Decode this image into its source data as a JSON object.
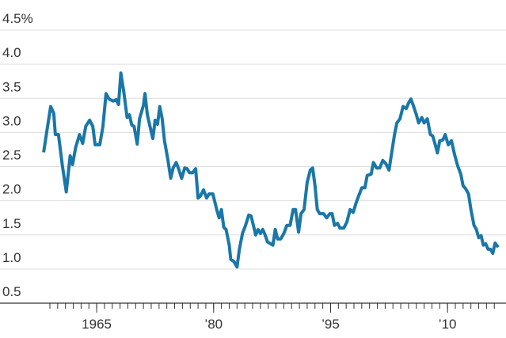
{
  "chart_data": {
    "type": "line",
    "x": [
      1958.2,
      1958.7,
      1959.1,
      1959.5,
      1959.7,
      1960.1,
      1960.6,
      1961.1,
      1961.6,
      1961.9,
      1962.3,
      1962.8,
      1963.2,
      1963.6,
      1964.1,
      1964.5,
      1964.8,
      1965.4,
      1965.8,
      1966.2,
      1966.6,
      1967.1,
      1967.5,
      1967.8,
      1968.1,
      1968.5,
      1968.9,
      1969.2,
      1969.5,
      1969.8,
      1970.2,
      1970.5,
      1971.0,
      1971.2,
      1971.5,
      1971.9,
      1972.2,
      1972.5,
      1972.8,
      1973.1,
      1973.4,
      1973.7,
      1974.1,
      1974.5,
      1974.8,
      1975.2,
      1975.5,
      1975.9,
      1976.3,
      1976.6,
      1976.9,
      1977.3,
      1977.7,
      1978.0,
      1978.3,
      1978.7,
      1979.1,
      1979.4,
      1979.9,
      1980.4,
      1980.7,
      1981.0,
      1981.3,
      1981.6,
      1982.0,
      1982.2,
      1982.6,
      1983.0,
      1983.3,
      1983.7,
      1984.1,
      1984.5,
      1984.8,
      1985.1,
      1985.4,
      1985.7,
      1986.0,
      1986.3,
      1986.6,
      1986.9,
      1987.3,
      1987.6,
      1987.9,
      1988.2,
      1988.6,
      1989.0,
      1989.4,
      1989.8,
      1990.2,
      1990.5,
      1990.9,
      1991.2,
      1991.6,
      1992.0,
      1992.4,
      1992.7,
      1993.0,
      1993.3,
      1993.6,
      1994.1,
      1994.5,
      1994.9,
      1995.2,
      1995.5,
      1995.9,
      1996.2,
      1996.7,
      1997.1,
      1997.5,
      1997.9,
      1998.3,
      1998.7,
      1999.0,
      1999.4,
      1999.7,
      2000.2,
      2000.5,
      2000.9,
      2001.3,
      2001.7,
      2002.1,
      2002.5,
      2002.8,
      2003.2,
      2003.5,
      2003.9,
      2004.3,
      2004.7,
      2005.0,
      2005.3,
      2005.6,
      2006.0,
      2006.3,
      2006.7,
      2007.0,
      2007.4,
      2007.8,
      2008.1,
      2008.4,
      2008.7,
      2009.0,
      2009.4,
      2009.7,
      2010.1,
      2010.5,
      2010.9,
      2011.3,
      2011.7,
      2012.0,
      2012.3,
      2012.7,
      2013.0,
      2013.4,
      2013.7,
      2014.0,
      2014.3,
      2014.6,
      2014.9,
      2015.2,
      2015.5,
      2015.8,
      2016.1,
      2016.5
    ],
    "series": [
      {
        "color": "#1a77a8",
        "values": [
          2.71,
          3.09,
          3.38,
          3.28,
          2.97,
          2.97,
          2.51,
          2.13,
          2.66,
          2.53,
          2.78,
          2.97,
          2.84,
          3.09,
          3.18,
          3.09,
          2.82,
          2.82,
          3.09,
          3.57,
          3.49,
          3.46,
          3.48,
          3.41,
          3.87,
          3.57,
          3.22,
          3.26,
          3.11,
          3.09,
          2.83,
          3.2,
          3.4,
          3.57,
          3.26,
          3.06,
          2.91,
          3.18,
          3.12,
          3.38,
          3.2,
          2.88,
          2.62,
          2.33,
          2.48,
          2.56,
          2.47,
          2.33,
          2.48,
          2.47,
          2.41,
          2.41,
          2.47,
          2.04,
          2.07,
          2.16,
          2.04,
          2.1,
          2.1,
          1.87,
          1.75,
          1.87,
          1.61,
          1.58,
          1.35,
          1.14,
          1.11,
          1.03,
          1.29,
          1.52,
          1.64,
          1.79,
          1.78,
          1.64,
          1.5,
          1.58,
          1.52,
          1.58,
          1.5,
          1.4,
          1.37,
          1.35,
          1.58,
          1.44,
          1.44,
          1.52,
          1.64,
          1.64,
          1.87,
          1.87,
          1.54,
          1.81,
          1.87,
          2.27,
          2.45,
          2.48,
          2.22,
          1.87,
          1.81,
          1.81,
          1.75,
          1.81,
          1.81,
          1.64,
          1.67,
          1.6,
          1.6,
          1.69,
          1.87,
          1.83,
          1.98,
          2.1,
          2.19,
          2.19,
          2.37,
          2.39,
          2.56,
          2.48,
          2.48,
          2.59,
          2.54,
          2.45,
          2.68,
          2.97,
          3.14,
          3.2,
          3.38,
          3.35,
          3.43,
          3.49,
          3.4,
          3.26,
          3.14,
          3.22,
          3.14,
          3.2,
          2.97,
          2.95,
          2.83,
          2.7,
          2.88,
          2.89,
          2.97,
          2.82,
          2.88,
          2.68,
          2.51,
          2.39,
          2.22,
          2.18,
          2.1,
          1.87,
          1.64,
          1.58,
          1.46,
          1.49,
          1.35,
          1.37,
          1.29,
          1.29,
          1.23,
          1.38,
          1.32
        ]
      }
    ],
    "xlim": [
      1952.6,
      2017.5
    ],
    "xticks": [
      {
        "value": 1965,
        "label": "1965"
      },
      {
        "value": 1980,
        "label": "’80"
      },
      {
        "value": 1995,
        "label": "’95"
      },
      {
        "value": 2010,
        "label": "’10"
      }
    ],
    "x_minor_ticks": [
      1959,
      1960,
      1961,
      1962,
      1963,
      1964,
      1965,
      1966,
      1967,
      1968,
      1969,
      1970,
      1971,
      1972,
      1973,
      1974,
      1975,
      1976,
      1977,
      1978,
      1979,
      1980,
      1981,
      1982,
      1983,
      1984,
      1985,
      1986,
      1987,
      1988,
      1989,
      1990,
      1991,
      1992,
      1993,
      1994,
      1995,
      1996,
      1997,
      1998,
      1999,
      2000,
      2001,
      2002,
      2003,
      2004,
      2005,
      2006,
      2007,
      2008,
      2009,
      2010,
      2011,
      2012,
      2013,
      2014,
      2015,
      2016
    ],
    "ylim": [
      0.5,
      4.5
    ],
    "yticks": [
      {
        "value": 0.5,
        "label": "0.5"
      },
      {
        "value": 1,
        "label": "1.0"
      },
      {
        "value": 1.5,
        "label": "1.5"
      },
      {
        "value": 2,
        "label": "2.0"
      },
      {
        "value": 2.5,
        "label": "2.5"
      },
      {
        "value": 3,
        "label": "3.0"
      },
      {
        "value": 3.5,
        "label": "3.5"
      },
      {
        "value": 4,
        "label": "4.0"
      },
      {
        "value": 4.5,
        "label": "4.5%"
      }
    ],
    "grid": true
  }
}
